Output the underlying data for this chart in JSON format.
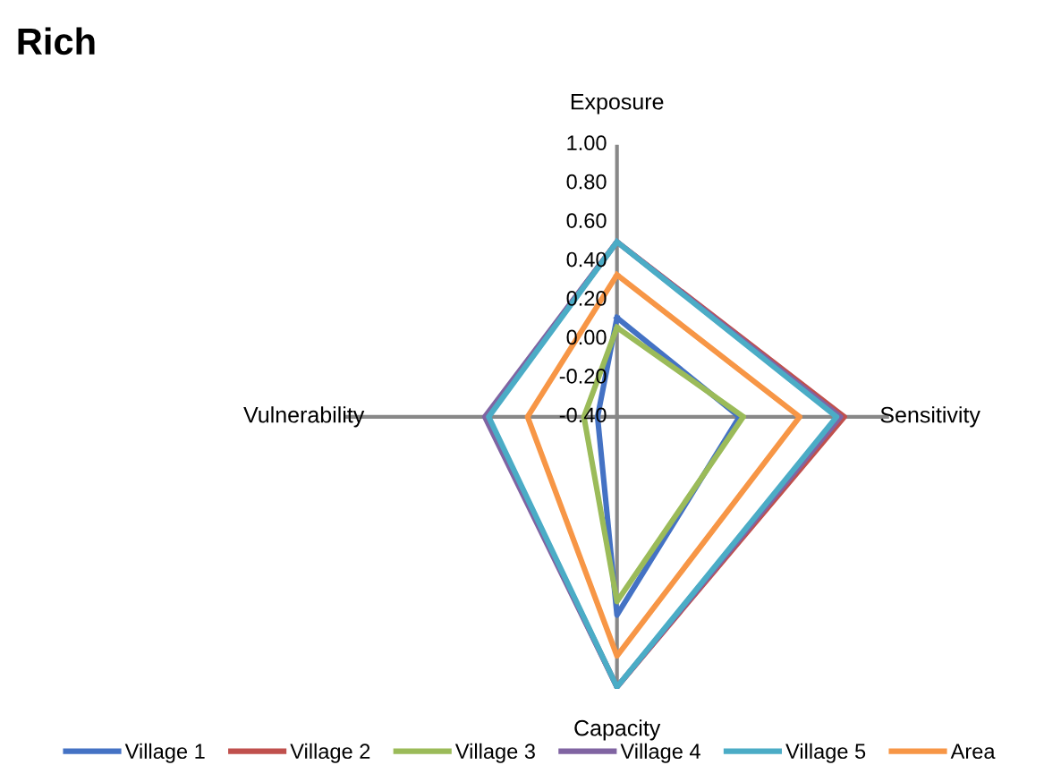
{
  "chart_data": {
    "type": "radar",
    "title": "Rich",
    "categories": [
      "Exposure",
      "Sensitivity",
      "Capacity",
      "Vulnerability"
    ],
    "ylim": [
      -0.4,
      1.0
    ],
    "yticks": [
      {
        "value": -0.4,
        "label": "-0.40"
      },
      {
        "value": -0.2,
        "label": "-0.20"
      },
      {
        "value": 0,
        "label": "0.00"
      },
      {
        "value": 0.2,
        "label": "0.20"
      },
      {
        "value": 0.4,
        "label": "0.40"
      },
      {
        "value": 0.6,
        "label": "0.60"
      },
      {
        "value": 0.8,
        "label": "0.80"
      },
      {
        "value": 1.0,
        "label": "1.00"
      }
    ],
    "grid": "x",
    "legend": "bottom",
    "marker": "none",
    "line_style": "solid",
    "series": [
      {
        "name": "Village 1",
        "color": "#4472c4",
        "values": [
          0.11,
          0.23,
          0.62,
          -0.3
        ]
      },
      {
        "name": "Village 2",
        "color": "#c0504d",
        "values": [
          0.5,
          0.77,
          0.99,
          0.27
        ]
      },
      {
        "name": "Village 3",
        "color": "#9bbb59",
        "values": [
          0.06,
          0.25,
          0.55,
          -0.23
        ]
      },
      {
        "name": "Village 4",
        "color": "#8064a2",
        "values": [
          0.5,
          0.75,
          0.99,
          0.28
        ]
      },
      {
        "name": "Village 5",
        "color": "#4bacc6",
        "values": [
          0.5,
          0.73,
          0.99,
          0.26
        ]
      },
      {
        "name": "Area",
        "color": "#f79646",
        "values": [
          0.33,
          0.54,
          0.83,
          0.06
        ]
      }
    ]
  }
}
